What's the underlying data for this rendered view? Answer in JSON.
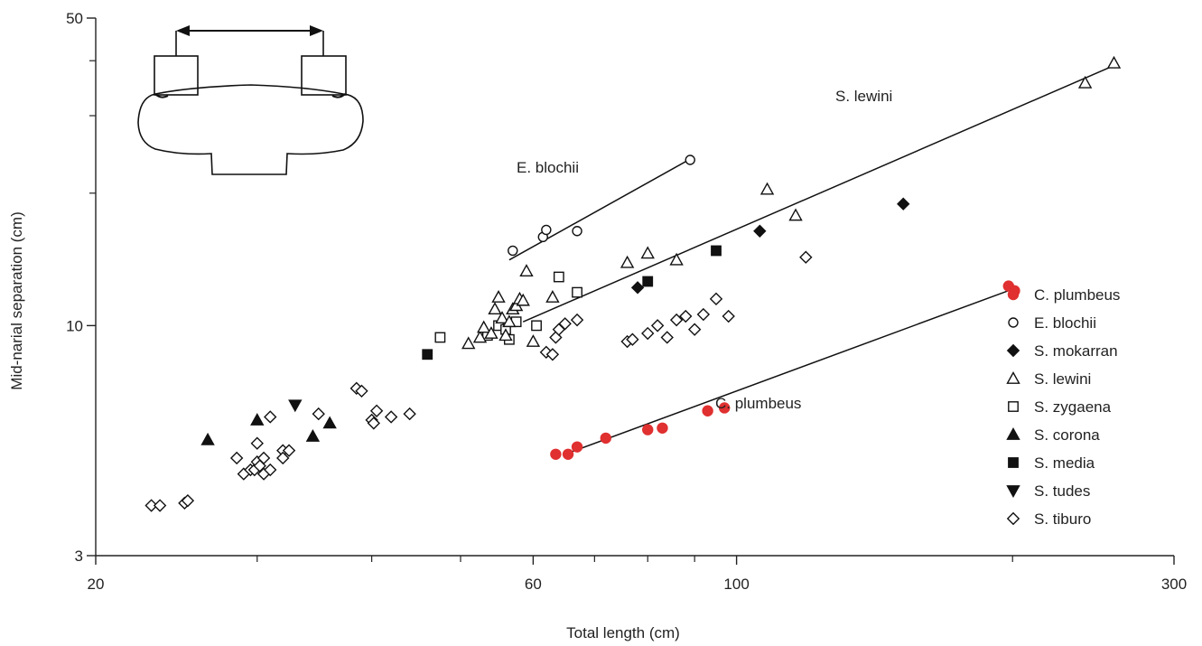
{
  "chart_data": {
    "type": "scatter",
    "xlabel": "Total length (cm)",
    "ylabel": "Mid-narial separation (cm)",
    "xscale": "log",
    "yscale": "log",
    "xlim": [
      20,
      300
    ],
    "ylim": [
      3,
      50
    ],
    "xticks_labeled": [
      20,
      60,
      100,
      300
    ],
    "xticks_minor": [
      30,
      40,
      50,
      70,
      80,
      90,
      200
    ],
    "yticks_labeled": [
      3,
      10,
      50
    ],
    "yticks_minor": [
      20,
      30,
      40
    ],
    "grid": false,
    "legend_position": "right",
    "series": [
      {
        "name": "C. plumbeus",
        "marker": "filled-circle",
        "color": "#e03030",
        "points": [
          [
            63.5,
            5.1
          ],
          [
            65.5,
            5.1
          ],
          [
            67,
            5.3
          ],
          [
            72,
            5.55
          ],
          [
            80,
            5.8
          ],
          [
            83,
            5.85
          ],
          [
            93,
            6.4
          ],
          [
            97,
            6.5
          ],
          [
            198,
            12.3
          ],
          [
            201,
            12.0
          ]
        ]
      },
      {
        "name": "E. blochii",
        "marker": "open-circle",
        "color": "#111111",
        "points": [
          [
            57,
            14.8
          ],
          [
            61.5,
            15.9
          ],
          [
            62,
            16.5
          ],
          [
            67,
            16.4
          ],
          [
            89,
            23.8
          ]
        ]
      },
      {
        "name": "S. mokarran",
        "marker": "filled-diamond",
        "color": "#111111",
        "points": [
          [
            78,
            12.2
          ],
          [
            106,
            16.4
          ],
          [
            152,
            18.9
          ]
        ]
      },
      {
        "name": "S. lewini",
        "marker": "open-triangle",
        "color": "#111111",
        "points": [
          [
            51,
            9.1
          ],
          [
            52.5,
            9.4
          ],
          [
            53,
            9.9
          ],
          [
            54,
            9.6
          ],
          [
            54.5,
            10.9
          ],
          [
            55,
            11.6
          ],
          [
            55.5,
            10.4
          ],
          [
            56,
            9.5
          ],
          [
            56.5,
            10.2
          ],
          [
            57,
            10.9
          ],
          [
            57.5,
            11.1
          ],
          [
            58,
            11.5
          ],
          [
            58.5,
            11.4
          ],
          [
            59,
            13.3
          ],
          [
            60,
            9.2
          ],
          [
            63,
            11.6
          ],
          [
            76,
            13.9
          ],
          [
            80,
            14.6
          ],
          [
            86,
            14.1
          ],
          [
            108,
            20.4
          ],
          [
            116,
            17.8
          ],
          [
            240,
            35.6
          ],
          [
            258,
            39.5
          ]
        ]
      },
      {
        "name": "S. zygaena",
        "marker": "open-square",
        "color": "#111111",
        "points": [
          [
            47.5,
            9.4
          ],
          [
            53.5,
            9.5
          ],
          [
            55,
            10.0
          ],
          [
            56,
            9.8
          ],
          [
            56.5,
            9.3
          ],
          [
            57.5,
            10.2
          ],
          [
            60.5,
            10.0
          ],
          [
            64,
            12.9
          ],
          [
            67,
            11.9
          ]
        ]
      },
      {
        "name": "S. corona",
        "marker": "filled-triangle",
        "color": "#111111",
        "points": [
          [
            26.5,
            5.5
          ],
          [
            30,
            6.1
          ],
          [
            34.5,
            5.6
          ],
          [
            36,
            6.0
          ]
        ]
      },
      {
        "name": "S. media",
        "marker": "filled-square",
        "color": "#111111",
        "points": [
          [
            46,
            8.6
          ],
          [
            80,
            12.6
          ],
          [
            95,
            14.8
          ]
        ]
      },
      {
        "name": "S. tudes",
        "marker": "filled-triangle-down",
        "color": "#111111",
        "points": [
          [
            33,
            6.6
          ]
        ]
      },
      {
        "name": "S. tiburo",
        "marker": "open-diamond",
        "color": "#111111",
        "points": [
          [
            23,
            3.9
          ],
          [
            23.5,
            3.9
          ],
          [
            25,
            3.95
          ],
          [
            25.2,
            4.0
          ],
          [
            29,
            4.6
          ],
          [
            29.5,
            4.7
          ],
          [
            29.8,
            4.7
          ],
          [
            30,
            4.9
          ],
          [
            30.2,
            4.8
          ],
          [
            30.5,
            5.0
          ],
          [
            30.5,
            4.6
          ],
          [
            31,
            4.7
          ],
          [
            28.5,
            5.0
          ],
          [
            30,
            5.4
          ],
          [
            31,
            6.2
          ],
          [
            32,
            5.2
          ],
          [
            32.5,
            5.2
          ],
          [
            32,
            5.0
          ],
          [
            35,
            6.3
          ],
          [
            38.5,
            7.2
          ],
          [
            39,
            7.1
          ],
          [
            40,
            6.1
          ],
          [
            40.2,
            6.0
          ],
          [
            40.5,
            6.4
          ],
          [
            42,
            6.2
          ],
          [
            44,
            6.3
          ],
          [
            62,
            8.7
          ],
          [
            63,
            8.6
          ],
          [
            63.5,
            9.4
          ],
          [
            64,
            9.8
          ],
          [
            65,
            10.1
          ],
          [
            67,
            10.3
          ],
          [
            76,
            9.2
          ],
          [
            77,
            9.3
          ],
          [
            80,
            9.6
          ],
          [
            82,
            10.0
          ],
          [
            84,
            9.4
          ],
          [
            86,
            10.3
          ],
          [
            88,
            10.5
          ],
          [
            90,
            9.8
          ],
          [
            92,
            10.6
          ],
          [
            95,
            11.5
          ],
          [
            98,
            10.5
          ],
          [
            119,
            14.3
          ]
        ]
      }
    ],
    "fit_lines": [
      {
        "label": "E. blochii",
        "from": [
          56.5,
          14.1
        ],
        "to": [
          89,
          23.9
        ]
      },
      {
        "label": "S. lewini",
        "from": [
          58.5,
          10.2
        ],
        "to": [
          258,
          39.0
        ]
      },
      {
        "label": "C. plumbeus",
        "from": [
          65,
          5.1
        ],
        "to": [
          200,
          12.1
        ]
      }
    ],
    "annotations": [
      "E. blochii",
      "S. lewini",
      "C. plumbeus"
    ]
  }
}
